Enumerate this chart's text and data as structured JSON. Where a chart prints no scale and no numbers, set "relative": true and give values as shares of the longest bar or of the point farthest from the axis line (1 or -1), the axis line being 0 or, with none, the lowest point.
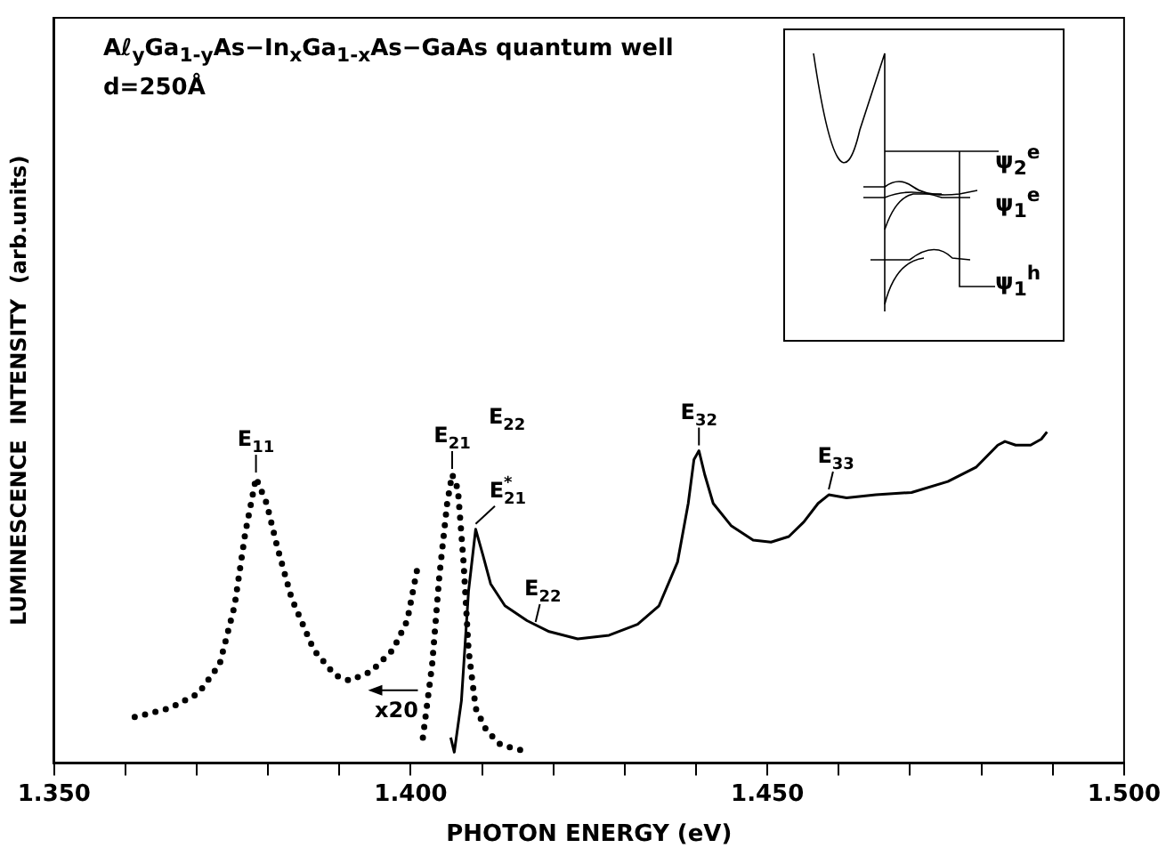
{
  "chart_data": {
    "type": "line",
    "title": "Aℓ$_{y}$Ga$_{1-y}$As−In$_{x}$Ga$_{1-x}$As−GaAs quantum well",
    "subtitle": "d=250Å",
    "xlabel": "PHOTON ENERGY (eV)",
    "ylabel": "LUMINESCENCE  INTENSITY  (arb.units)",
    "relative": true,
    "xlim": [
      1.35,
      1.5
    ],
    "xticks": [
      {
        "value": 1.35,
        "label": "1.350"
      },
      {
        "value": 1.36,
        "label": null
      },
      {
        "value": 1.37,
        "label": null
      },
      {
        "value": 1.38,
        "label": null
      },
      {
        "value": 1.39,
        "label": null
      },
      {
        "value": 1.4,
        "label": "1.400"
      },
      {
        "value": 1.41,
        "label": null
      },
      {
        "value": 1.42,
        "label": null
      },
      {
        "value": 1.43,
        "label": null
      },
      {
        "value": 1.44,
        "label": null
      },
      {
        "value": 1.45,
        "label": "1.450"
      },
      {
        "value": 1.46,
        "label": null
      },
      {
        "value": 1.47,
        "label": null
      },
      {
        "value": 1.48,
        "label": null
      },
      {
        "value": 1.49,
        "label": null
      },
      {
        "value": 1.5,
        "label": "1.500"
      }
    ],
    "series": [
      {
        "color": "#000000",
        "line_style": "dotted",
        "x": [
          1.3613,
          1.3662,
          1.3702,
          1.3732,
          1.3753,
          1.3768,
          1.3783,
          1.3798,
          1.3813,
          1.3833,
          1.3864,
          1.3894,
          1.3914,
          1.3944,
          1.3975,
          1.3995,
          1.401,
          1.4013,
          1.4017,
          1.403,
          1.404,
          1.4051,
          1.4058,
          1.4066,
          1.4074,
          1.4081,
          1.4091,
          1.4106,
          1.4126,
          1.4157
        ],
        "values": [
          0.139,
          0.166,
          0.21,
          0.298,
          0.475,
          0.695,
          0.861,
          0.784,
          0.651,
          0.497,
          0.342,
          0.265,
          0.249,
          0.276,
          0.342,
          0.43,
          0.596,
          null,
          0.077,
          0.298,
          0.563,
          0.784,
          0.872,
          0.828,
          0.607,
          0.342,
          0.166,
          0.099,
          0.055,
          0.038
        ]
      },
      {
        "color": "#000000",
        "line_style": "solid",
        "x": [
          1.4056,
          1.4061,
          1.4071,
          1.4081,
          1.4091,
          1.4101,
          1.4112,
          1.4132,
          1.4163,
          1.4194,
          1.4234,
          1.4278,
          1.4318,
          1.4348,
          1.4374,
          1.4389,
          1.4397,
          1.4404,
          1.4412,
          1.4424,
          1.4449,
          1.448,
          1.4505,
          1.453,
          1.4551,
          1.4571,
          1.4586,
          1.4611,
          1.4652,
          1.4702,
          1.4753,
          1.4793,
          1.4823,
          1.4833,
          1.4848,
          1.4869,
          1.4884,
          1.4892
        ],
        "values": [
          0.077,
          0.033,
          0.188,
          0.519,
          0.706,
          0.629,
          0.541,
          0.475,
          0.43,
          0.397,
          0.375,
          0.386,
          0.419,
          0.475,
          0.607,
          0.784,
          0.916,
          0.943,
          0.872,
          0.784,
          0.717,
          0.673,
          0.667,
          0.684,
          0.728,
          0.784,
          0.81,
          0.801,
          0.81,
          0.817,
          0.85,
          0.894,
          0.96,
          0.971,
          0.96,
          0.96,
          0.978,
          1.0
        ]
      }
    ],
    "annotations": [
      {
        "text": "E$_{11}$",
        "x": 1.3783,
        "y": 0.861
      },
      {
        "text": "E$_{21}$",
        "x": 1.4058,
        "y": 0.872
      },
      "E$_{22}$",
      {
        "text": "E$^{*}$$_{21}$",
        "x": 1.4091,
        "y": 0.706
      },
      {
        "text": "E$_{22}$",
        "x": 1.4175,
        "y": 0.41
      },
      {
        "text": "E$_{32}$",
        "x": 1.4404,
        "y": 0.943
      },
      {
        "text": "E$_{33}$",
        "x": 1.4586,
        "y": 0.81
      },
      {
        "text": "x20",
        "x": 1.401,
        "y": 0.22
      },
      "ψ$_{2}$$^{e}$",
      "ψ$_{1}$$^{e}$",
      "ψ$_{1}$$^{h}$"
    ]
  }
}
